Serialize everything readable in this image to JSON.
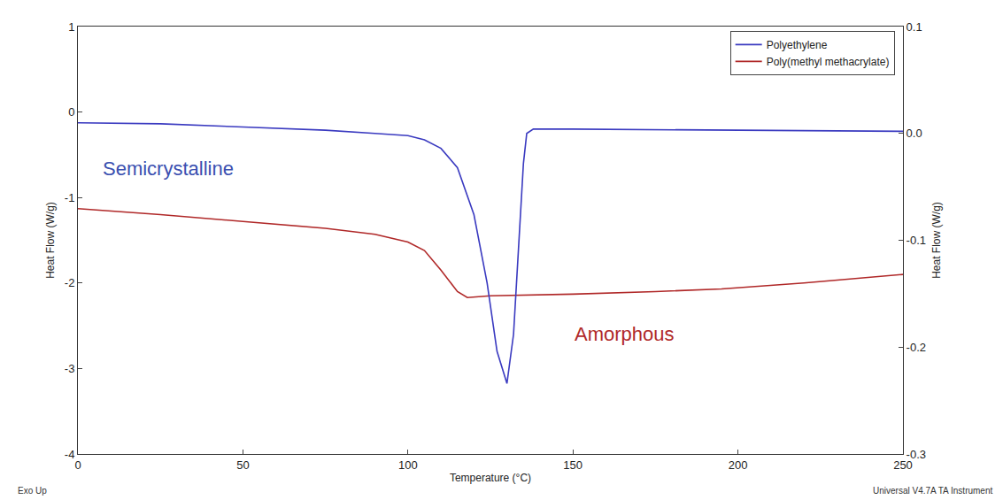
{
  "chart_data": {
    "type": "line",
    "x_label": "Temperature (°C)",
    "y_label": "Heat Flow (W/g)",
    "y2_label": "Heat Flow (W/g)",
    "xlim": [
      0,
      250
    ],
    "xticks": [
      0,
      50,
      100,
      150,
      200,
      250
    ],
    "ylim": [
      -4,
      1
    ],
    "yticks": [
      -4,
      -3,
      -2,
      -1,
      0,
      1
    ],
    "y2lim": [
      -0.3,
      0.1
    ],
    "y2ticks": [
      -0.3,
      -0.2,
      -0.1,
      {
        "value": 0,
        "label": "0.0"
      },
      0.1
    ],
    "grid": false,
    "legend": "top right",
    "series": [
      {
        "name": "Polyethylene",
        "color": "#3a3ac0",
        "axis": "y2",
        "line_style": "solid",
        "x": [
          0,
          25,
          50,
          75,
          90,
          100,
          105,
          110,
          115,
          120,
          124,
          127,
          130,
          132,
          133.5,
          135,
          136,
          138,
          150,
          200,
          250
        ],
        "values": [
          0.01,
          0.009,
          0.006,
          0.003,
          0.0,
          -0.002,
          -0.006,
          -0.014,
          -0.032,
          -0.076,
          -0.14,
          -0.204,
          -0.234,
          -0.188,
          -0.108,
          -0.028,
          0.0,
          0.004,
          0.004,
          0.003,
          0.002
        ]
      },
      {
        "name": "Poly(methyl methacrylate)",
        "color": "#b02828",
        "line_style": "solid",
        "x": [
          0,
          25,
          50,
          75,
          90,
          100,
          105,
          110,
          115,
          118,
          125,
          150,
          175,
          195,
          220,
          250
        ],
        "values": [
          -1.13,
          -1.2,
          -1.28,
          -1.36,
          -1.43,
          -1.52,
          -1.62,
          -1.85,
          -2.1,
          -2.17,
          -2.15,
          -2.13,
          -2.1,
          -2.07,
          -2.0,
          -1.9
        ]
      }
    ],
    "annotations": [
      {
        "text": "Semicrystalline",
        "color": "#3a4fb0"
      },
      {
        "text": "Amorphous",
        "color": "#b02828"
      },
      {
        "text": "Exo Up",
        "color": "#333333"
      },
      {
        "text": "Universal V4.7A TA Instrument",
        "color": "#333333"
      }
    ]
  }
}
